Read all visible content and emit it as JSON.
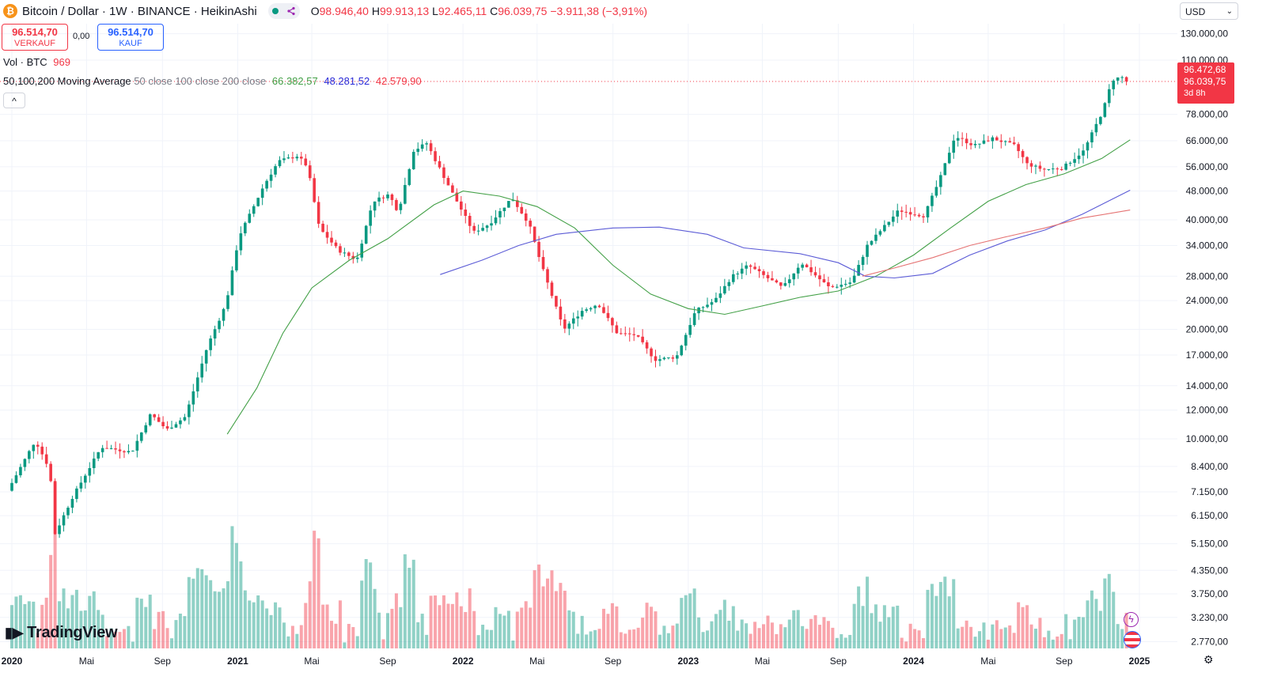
{
  "header": {
    "symbol_icon": "bitcoin-icon",
    "symbol_letter": "₿",
    "symbol": "Bitcoin / Dollar · 1W · BINANCE · HeikinAshi",
    "o_label": "O",
    "o": "98.946,40",
    "h_label": "H",
    "h": "99.913,13",
    "l_label": "L",
    "l": "92.465,11",
    "c_label": "C",
    "c": "96.039,75",
    "change": "−3.911,38 (−3,91%)"
  },
  "trade": {
    "sell_price": "96.514,70",
    "sell_label": "VERKAUF",
    "spread": "0,00",
    "buy_price": "96.514,70",
    "buy_label": "KAUF"
  },
  "indicators": {
    "vol_label": "Vol · BTC",
    "vol_value": "969",
    "ma_label": "50,100,200 Moving Average",
    "ma_params": "50 close 100 close 200 close",
    "ma50_value": "66.382,57",
    "ma100_value": "48.281,52",
    "ma200_value": "42.579,90",
    "collapse_icon": "chevron-up-icon",
    "collapse_glyph": "^"
  },
  "currency": {
    "label": "USD",
    "chevron": "⌄"
  },
  "watermark": "TradingView",
  "price_tags": {
    "last": "96.472,68",
    "close": "96.039,75",
    "countdown": "3d 8h"
  },
  "colors": {
    "up": "#089981",
    "down": "#f23645",
    "ma50": "#43a047",
    "ma100": "#5b5bd6",
    "ma200": "#e57373"
  },
  "chart_data": {
    "type": "candlestick",
    "scale": "log",
    "y_axis_ticks": [
      "130.000,00",
      "110.000,00",
      "78.000,00",
      "66.000,00",
      "56.000,00",
      "48.000,00",
      "40.000,00",
      "34.000,00",
      "28.000,00",
      "24.000,00",
      "20.000,00",
      "17.000,00",
      "14.000,00",
      "12.000,00",
      "10.000,00",
      "8.400,00",
      "7.150,00",
      "6.150,00",
      "5.150,00",
      "4.350,00",
      "3.750,00",
      "3.230,00",
      "2.770,00"
    ],
    "y_tick_values": [
      130000,
      110000,
      78000,
      66000,
      56000,
      48000,
      40000,
      34000,
      28000,
      24000,
      20000,
      17000,
      14000,
      12000,
      10000,
      8400,
      7150,
      6150,
      5150,
      4350,
      3750,
      3230,
      2770
    ],
    "x_axis_ticks": [
      "2020",
      "Mai",
      "Sep",
      "2021",
      "Mai",
      "Sep",
      "2022",
      "Mai",
      "Sep",
      "2023",
      "Mai",
      "Sep",
      "2024",
      "Mai",
      "Sep",
      "2025"
    ],
    "x_tick_dates": [
      "2020-01-01",
      "2020-05-01",
      "2020-09-01",
      "2021-01-01",
      "2021-05-01",
      "2021-09-01",
      "2022-01-01",
      "2022-05-01",
      "2022-09-01",
      "2023-01-01",
      "2023-05-01",
      "2023-09-01",
      "2024-01-01",
      "2024-05-01",
      "2024-09-01",
      "2025-01-01"
    ],
    "price_path": [
      [
        "2020-01-01",
        7200
      ],
      [
        "2020-02-15",
        9900
      ],
      [
        "2020-03-10",
        8200
      ],
      [
        "2020-03-16",
        5400
      ],
      [
        "2020-04-15",
        6900
      ],
      [
        "2020-06-01",
        9500
      ],
      [
        "2020-07-20",
        9200
      ],
      [
        "2020-08-20",
        11700
      ],
      [
        "2020-09-15",
        10600
      ],
      [
        "2020-10-15",
        11500
      ],
      [
        "2020-11-20",
        18000
      ],
      [
        "2020-12-20",
        23500
      ],
      [
        "2021-01-10",
        36000
      ],
      [
        "2021-02-20",
        50000
      ],
      [
        "2021-03-15",
        58000
      ],
      [
        "2021-04-15",
        60000
      ],
      [
        "2021-05-01",
        56000
      ],
      [
        "2021-05-20",
        38000
      ],
      [
        "2021-06-20",
        33000
      ],
      [
        "2021-07-20",
        31000
      ],
      [
        "2021-08-15",
        45000
      ],
      [
        "2021-09-10",
        47000
      ],
      [
        "2021-09-25",
        42000
      ],
      [
        "2021-10-20",
        62000
      ],
      [
        "2021-11-10",
        65000
      ],
      [
        "2021-12-20",
        48000
      ],
      [
        "2022-01-25",
        37000
      ],
      [
        "2022-02-20",
        39000
      ],
      [
        "2022-03-28",
        46000
      ],
      [
        "2022-04-25",
        39000
      ],
      [
        "2022-05-15",
        30000
      ],
      [
        "2022-06-20",
        20000
      ],
      [
        "2022-07-20",
        22500
      ],
      [
        "2022-08-15",
        23500
      ],
      [
        "2022-09-15",
        19500
      ],
      [
        "2022-10-15",
        19300
      ],
      [
        "2022-11-15",
        16500
      ],
      [
        "2022-12-20",
        16800
      ],
      [
        "2023-01-20",
        22500
      ],
      [
        "2023-02-20",
        24000
      ],
      [
        "2023-03-20",
        28000
      ],
      [
        "2023-04-15",
        30000
      ],
      [
        "2023-06-10",
        26000
      ],
      [
        "2023-07-10",
        30500
      ],
      [
        "2023-08-25",
        26000
      ],
      [
        "2023-09-30",
        27000
      ],
      [
        "2023-10-25",
        34000
      ],
      [
        "2023-12-15",
        42500
      ],
      [
        "2024-01-25",
        41000
      ],
      [
        "2024-02-20",
        52000
      ],
      [
        "2024-03-15",
        68000
      ],
      [
        "2024-04-15",
        64000
      ],
      [
        "2024-05-15",
        67000
      ],
      [
        "2024-06-20",
        64000
      ],
      [
        "2024-07-10",
        57000
      ],
      [
        "2024-08-05",
        55000
      ],
      [
        "2024-09-05",
        55500
      ],
      [
        "2024-10-10",
        62000
      ],
      [
        "2024-11-10",
        80000
      ],
      [
        "2024-11-25",
        97000
      ],
      [
        "2024-12-10",
        99000
      ],
      [
        "2024-12-17",
        96040
      ]
    ],
    "ma50_path": [
      [
        "2020-12-15",
        10300
      ],
      [
        "2021-02-01",
        13800
      ],
      [
        "2021-03-15",
        19500
      ],
      [
        "2021-05-01",
        26000
      ],
      [
        "2021-07-01",
        31000
      ],
      [
        "2021-09-01",
        35500
      ],
      [
        "2021-11-15",
        44000
      ],
      [
        "2022-01-01",
        48000
      ],
      [
        "2022-03-01",
        46500
      ],
      [
        "2022-05-01",
        43500
      ],
      [
        "2022-07-01",
        38000
      ],
      [
        "2022-09-01",
        30000
      ],
      [
        "2022-11-01",
        25000
      ],
      [
        "2023-01-01",
        22800
      ],
      [
        "2023-03-01",
        22000
      ],
      [
        "2023-05-01",
        23200
      ],
      [
        "2023-07-01",
        24500
      ],
      [
        "2023-09-01",
        25500
      ],
      [
        "2023-11-01",
        28000
      ],
      [
        "2024-01-01",
        32000
      ],
      [
        "2024-03-01",
        38000
      ],
      [
        "2024-05-01",
        45000
      ],
      [
        "2024-07-01",
        50000
      ],
      [
        "2024-09-01",
        53500
      ],
      [
        "2024-11-01",
        59000
      ],
      [
        "2024-12-17",
        66383
      ]
    ],
    "ma100_path": [
      [
        "2021-11-25",
        28300
      ],
      [
        "2022-02-01",
        31000
      ],
      [
        "2022-04-01",
        34000
      ],
      [
        "2022-06-01",
        36500
      ],
      [
        "2022-09-01",
        38000
      ],
      [
        "2022-11-15",
        38200
      ],
      [
        "2023-02-01",
        36500
      ],
      [
        "2023-04-01",
        33500
      ],
      [
        "2023-07-01",
        32300
      ],
      [
        "2023-09-01",
        30500
      ],
      [
        "2023-10-15",
        28000
      ],
      [
        "2023-12-01",
        27700
      ],
      [
        "2024-02-01",
        28500
      ],
      [
        "2024-04-01",
        32000
      ],
      [
        "2024-06-01",
        35000
      ],
      [
        "2024-08-01",
        37500
      ],
      [
        "2024-10-01",
        41500
      ],
      [
        "2024-12-17",
        48282
      ]
    ],
    "ma200_path": [
      [
        "2023-10-10",
        28000
      ],
      [
        "2023-12-01",
        29500
      ],
      [
        "2024-02-01",
        31500
      ],
      [
        "2024-04-01",
        34000
      ],
      [
        "2024-06-01",
        36000
      ],
      [
        "2024-08-01",
        38000
      ],
      [
        "2024-10-01",
        40500
      ],
      [
        "2024-12-17",
        42580
      ]
    ]
  }
}
